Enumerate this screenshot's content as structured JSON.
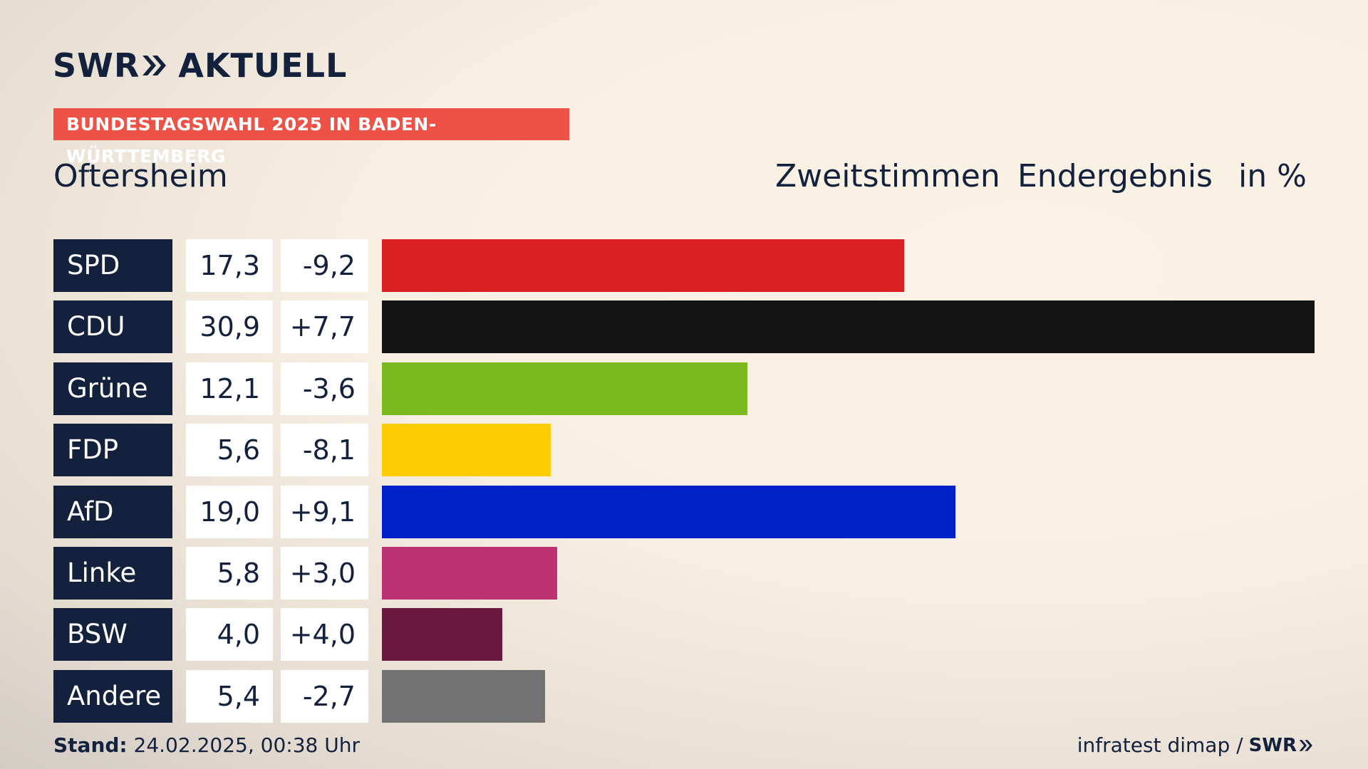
{
  "header": {
    "brand_left": "SWR",
    "brand_right": "AKTUELL",
    "banner": "BUNDESTAGSWAHL 2025 IN BADEN-WÜRTTEMBERG",
    "location": "Oftersheim",
    "col1": "Zweitstimmen",
    "col2": "Endergebnis",
    "col3": "in %"
  },
  "chart_data": {
    "type": "bar",
    "orientation": "horizontal",
    "categories": [
      "SPD",
      "CDU",
      "Grüne",
      "FDP",
      "AfD",
      "Linke",
      "BSW",
      "Andere"
    ],
    "values": [
      17.3,
      30.9,
      12.1,
      5.6,
      19.0,
      5.8,
      4.0,
      5.4
    ],
    "value_labels": [
      "17,3",
      "30,9",
      "12,1",
      "5,6",
      "19,0",
      "5,8",
      "4,0",
      "5,4"
    ],
    "changes": [
      -9.2,
      7.7,
      -3.6,
      -8.1,
      9.1,
      3.0,
      4.0,
      -2.7
    ],
    "change_labels": [
      "-9,2",
      "+7,7",
      "-3,6",
      "-8,1",
      "+9,1",
      "+3,0",
      "+4,0",
      "-2,7"
    ],
    "colors": [
      "#d81f22",
      "#141414",
      "#7aba1e",
      "#ffcc05",
      "#0021c8",
      "#bc3273",
      "#6a183d",
      "#727272"
    ],
    "xlim": [
      0,
      30.9
    ]
  },
  "footer": {
    "stand_label": "Stand:",
    "stand_value": "24.02.2025, 00:38 Uhr",
    "source": "infratest dimap /",
    "source_brand": "SWR"
  }
}
